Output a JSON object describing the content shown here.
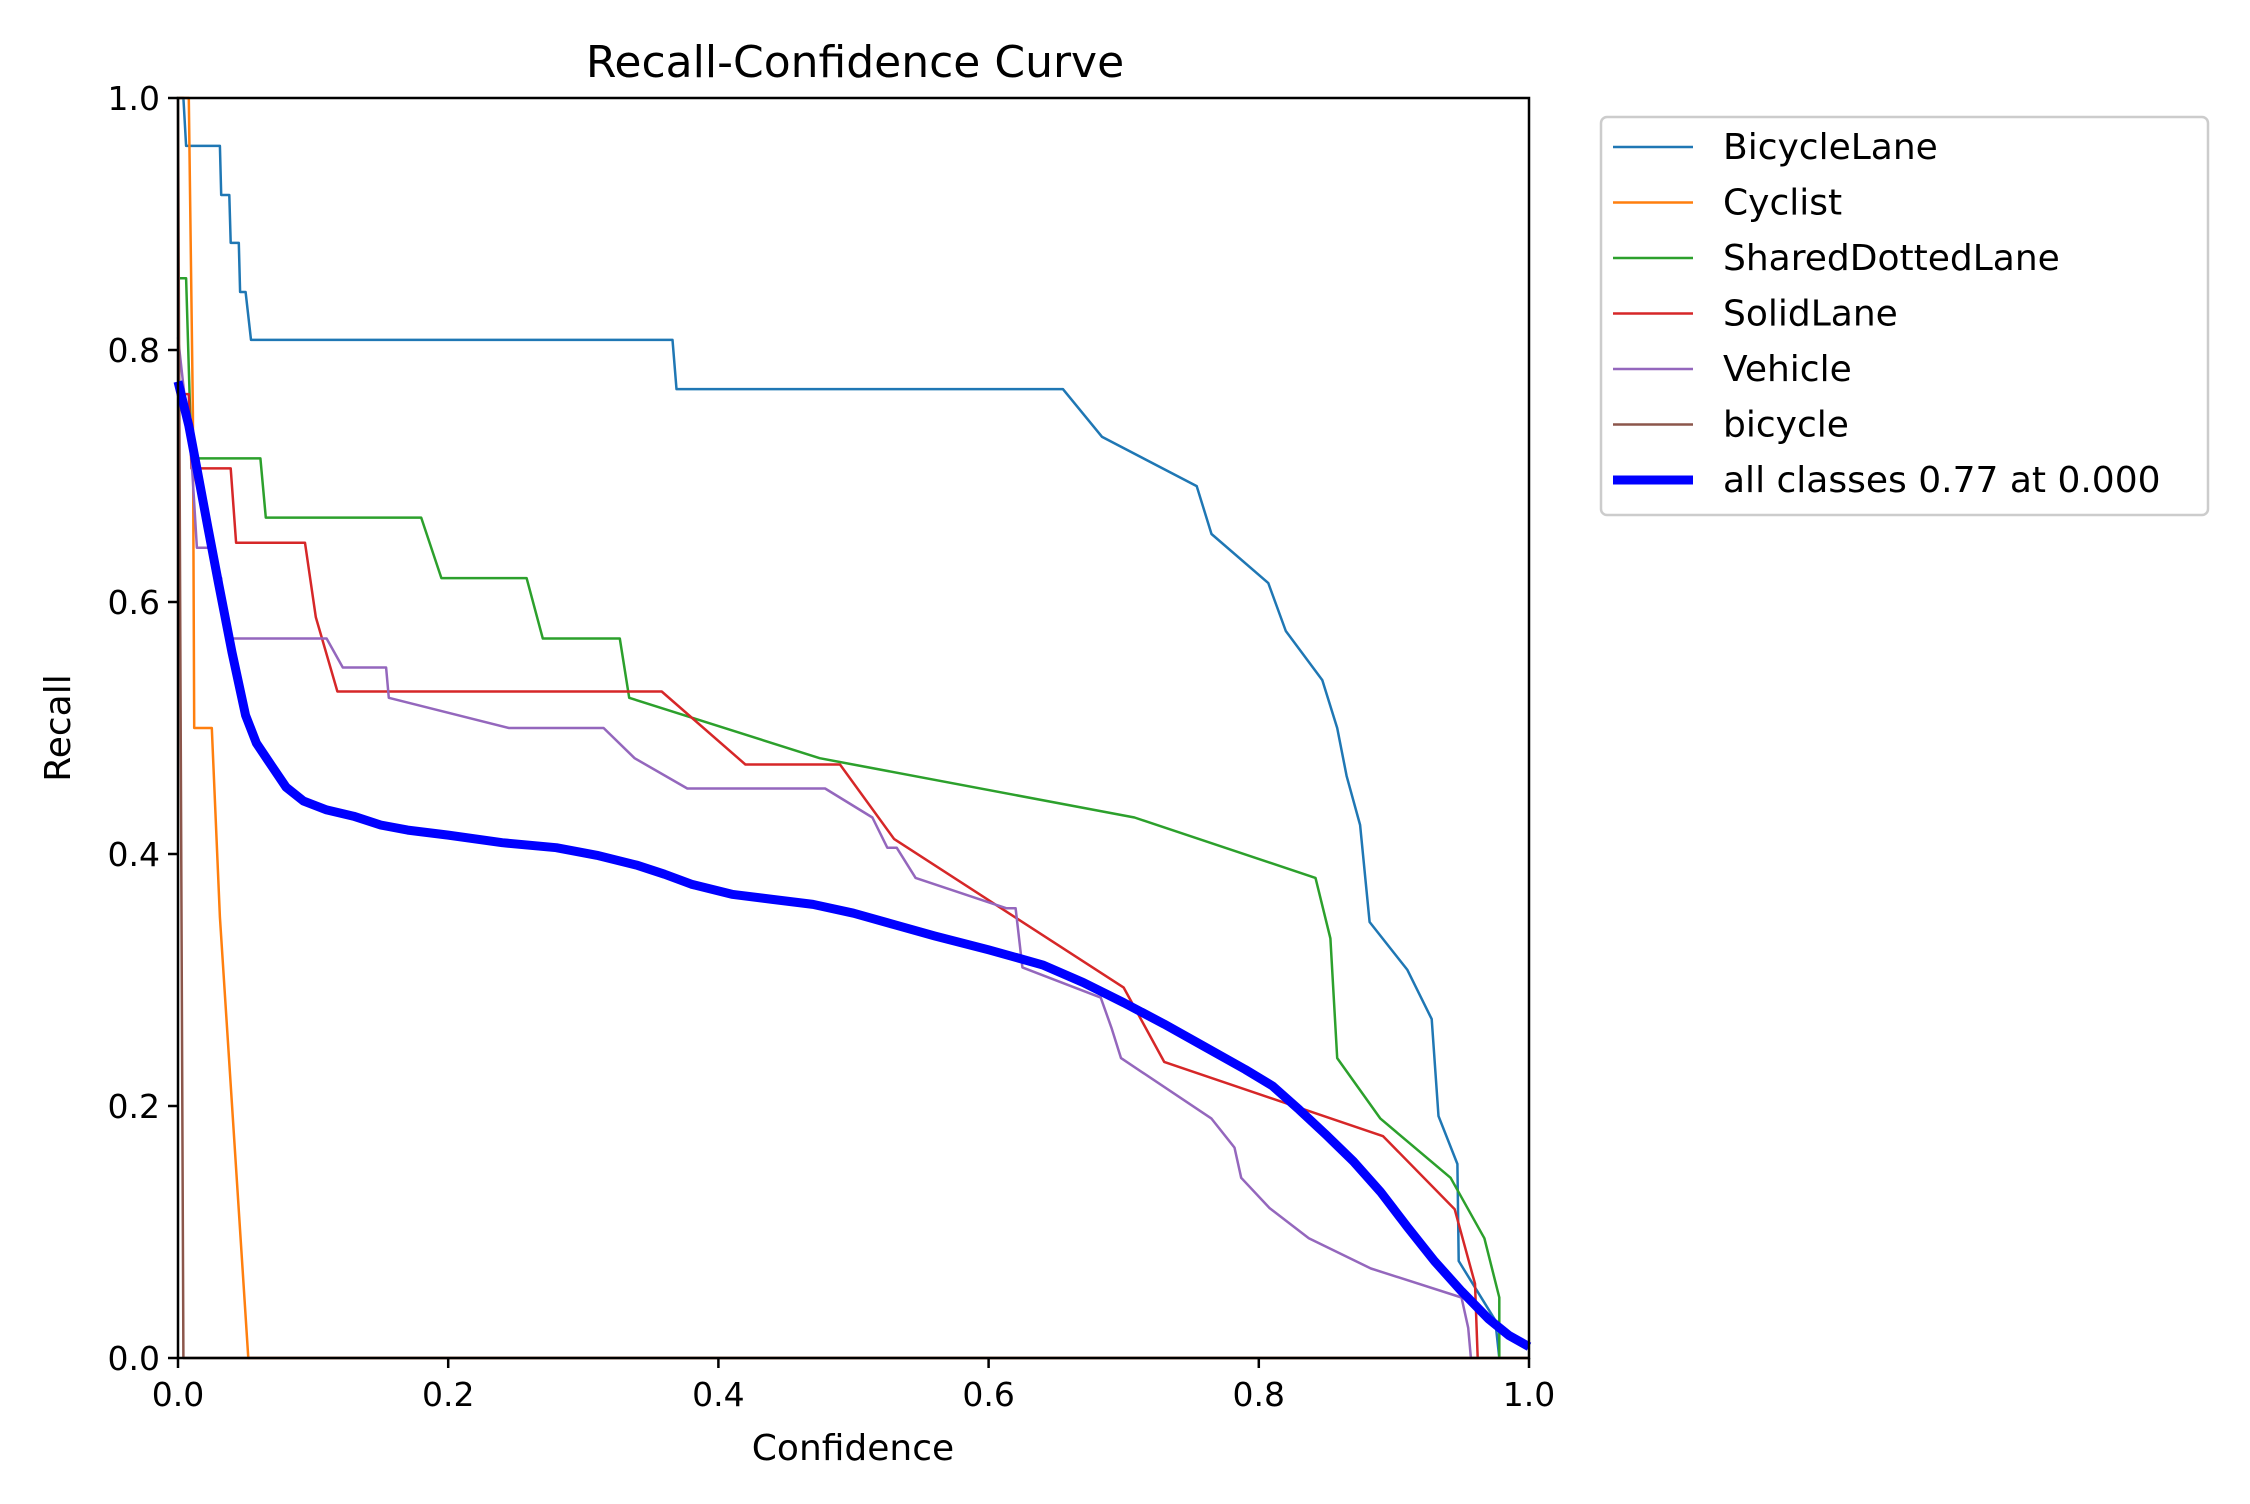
{
  "chart_data": {
    "type": "line",
    "title": "Recall-Confidence Curve",
    "xlabel": "Confidence",
    "ylabel": "Recall",
    "xlim": [
      0.0,
      1.0
    ],
    "ylim": [
      0.0,
      1.0
    ],
    "xticks": [
      "0.0",
      "0.2",
      "0.4",
      "0.6",
      "0.8",
      "1.0"
    ],
    "yticks": [
      "0.0",
      "0.2",
      "0.4",
      "0.6",
      "0.8",
      "1.0"
    ],
    "grid": false,
    "legend_position": "outside-upper-right",
    "series": [
      {
        "name": "BicycleLane",
        "color": "#1f77b4",
        "width": "thin",
        "points": [
          [
            0.0,
            1.0
          ],
          [
            0.004,
            1.0
          ],
          [
            0.006,
            0.962
          ],
          [
            0.031,
            0.962
          ],
          [
            0.032,
            0.923
          ],
          [
            0.038,
            0.923
          ],
          [
            0.039,
            0.885
          ],
          [
            0.045,
            0.885
          ],
          [
            0.046,
            0.846
          ],
          [
            0.05,
            0.846
          ],
          [
            0.054,
            0.808
          ],
          [
            0.366,
            0.808
          ],
          [
            0.369,
            0.769
          ],
          [
            0.655,
            0.769
          ],
          [
            0.684,
            0.731
          ],
          [
            0.754,
            0.692
          ],
          [
            0.765,
            0.654
          ],
          [
            0.807,
            0.615
          ],
          [
            0.82,
            0.577
          ],
          [
            0.847,
            0.538
          ],
          [
            0.858,
            0.5
          ],
          [
            0.865,
            0.462
          ],
          [
            0.875,
            0.423
          ],
          [
            0.882,
            0.346
          ],
          [
            0.91,
            0.308
          ],
          [
            0.928,
            0.269
          ],
          [
            0.933,
            0.192
          ],
          [
            0.947,
            0.154
          ],
          [
            0.948,
            0.077
          ],
          [
            0.975,
            0.03
          ],
          [
            0.978,
            0.0
          ]
        ]
      },
      {
        "name": "Cyclist",
        "color": "#ff7f0e",
        "width": "thin",
        "points": [
          [
            0.0,
            1.0
          ],
          [
            0.008,
            1.0
          ],
          [
            0.011,
            0.75
          ],
          [
            0.012,
            0.5
          ],
          [
            0.025,
            0.5
          ],
          [
            0.031,
            0.35
          ],
          [
            0.052,
            0.0
          ],
          [
            1.0,
            0.0
          ]
        ]
      },
      {
        "name": "SharedDottedLane",
        "color": "#2ca02c",
        "width": "thin",
        "points": [
          [
            0.0,
            0.857
          ],
          [
            0.006,
            0.857
          ],
          [
            0.01,
            0.714
          ],
          [
            0.061,
            0.714
          ],
          [
            0.065,
            0.667
          ],
          [
            0.18,
            0.667
          ],
          [
            0.195,
            0.619
          ],
          [
            0.258,
            0.619
          ],
          [
            0.27,
            0.571
          ],
          [
            0.327,
            0.571
          ],
          [
            0.334,
            0.524
          ],
          [
            0.475,
            0.476
          ],
          [
            0.708,
            0.429
          ],
          [
            0.842,
            0.381
          ],
          [
            0.853,
            0.333
          ],
          [
            0.858,
            0.238
          ],
          [
            0.89,
            0.19
          ],
          [
            0.942,
            0.143
          ],
          [
            0.967,
            0.095
          ],
          [
            0.978,
            0.048
          ],
          [
            0.978,
            0.0
          ]
        ]
      },
      {
        "name": "SolidLane",
        "color": "#d62728",
        "width": "thin",
        "points": [
          [
            0.0,
            0.765
          ],
          [
            0.008,
            0.765
          ],
          [
            0.01,
            0.706
          ],
          [
            0.039,
            0.706
          ],
          [
            0.043,
            0.647
          ],
          [
            0.094,
            0.647
          ],
          [
            0.102,
            0.588
          ],
          [
            0.118,
            0.529
          ],
          [
            0.358,
            0.529
          ],
          [
            0.42,
            0.471
          ],
          [
            0.49,
            0.471
          ],
          [
            0.53,
            0.412
          ],
          [
            0.7,
            0.294
          ],
          [
            0.73,
            0.235
          ],
          [
            0.892,
            0.176
          ],
          [
            0.945,
            0.118
          ],
          [
            0.96,
            0.059
          ],
          [
            0.962,
            0.0
          ]
        ]
      },
      {
        "name": "Vehicle",
        "color": "#9467bd",
        "width": "thin",
        "points": [
          [
            0.0,
            0.81
          ],
          [
            0.01,
            0.714
          ],
          [
            0.014,
            0.643
          ],
          [
            0.026,
            0.643
          ],
          [
            0.028,
            0.619
          ],
          [
            0.032,
            0.619
          ],
          [
            0.033,
            0.595
          ],
          [
            0.04,
            0.571
          ],
          [
            0.11,
            0.571
          ],
          [
            0.122,
            0.548
          ],
          [
            0.154,
            0.548
          ],
          [
            0.156,
            0.524
          ],
          [
            0.245,
            0.5
          ],
          [
            0.315,
            0.5
          ],
          [
            0.338,
            0.476
          ],
          [
            0.377,
            0.452
          ],
          [
            0.479,
            0.452
          ],
          [
            0.514,
            0.429
          ],
          [
            0.525,
            0.405
          ],
          [
            0.532,
            0.405
          ],
          [
            0.546,
            0.381
          ],
          [
            0.613,
            0.357
          ],
          [
            0.62,
            0.357
          ],
          [
            0.625,
            0.31
          ],
          [
            0.683,
            0.286
          ],
          [
            0.691,
            0.262
          ],
          [
            0.698,
            0.238
          ],
          [
            0.765,
            0.19
          ],
          [
            0.782,
            0.167
          ],
          [
            0.787,
            0.143
          ],
          [
            0.808,
            0.119
          ],
          [
            0.837,
            0.095
          ],
          [
            0.883,
            0.071
          ],
          [
            0.95,
            0.048
          ],
          [
            0.955,
            0.024
          ],
          [
            0.957,
            0.0
          ]
        ]
      },
      {
        "name": "bicycle",
        "color": "#8c564b",
        "width": "thin",
        "points": [
          [
            0.0,
            1.0
          ],
          [
            0.004,
            0.0
          ],
          [
            1.0,
            0.0
          ]
        ]
      },
      {
        "name": "all classes 0.77 at 0.000",
        "color": "#0000ff",
        "width": "thick",
        "points": [
          [
            0.0,
            0.775
          ],
          [
            0.008,
            0.74
          ],
          [
            0.015,
            0.7
          ],
          [
            0.022,
            0.66
          ],
          [
            0.03,
            0.615
          ],
          [
            0.04,
            0.56
          ],
          [
            0.05,
            0.51
          ],
          [
            0.058,
            0.488
          ],
          [
            0.068,
            0.472
          ],
          [
            0.08,
            0.453
          ],
          [
            0.093,
            0.442
          ],
          [
            0.11,
            0.435
          ],
          [
            0.13,
            0.43
          ],
          [
            0.15,
            0.423
          ],
          [
            0.17,
            0.419
          ],
          [
            0.2,
            0.415
          ],
          [
            0.24,
            0.409
          ],
          [
            0.28,
            0.405
          ],
          [
            0.31,
            0.399
          ],
          [
            0.34,
            0.391
          ],
          [
            0.36,
            0.384
          ],
          [
            0.38,
            0.376
          ],
          [
            0.41,
            0.368
          ],
          [
            0.44,
            0.364
          ],
          [
            0.47,
            0.36
          ],
          [
            0.5,
            0.353
          ],
          [
            0.53,
            0.344
          ],
          [
            0.56,
            0.335
          ],
          [
            0.6,
            0.324
          ],
          [
            0.64,
            0.312
          ],
          [
            0.67,
            0.298
          ],
          [
            0.7,
            0.282
          ],
          [
            0.73,
            0.265
          ],
          [
            0.76,
            0.247
          ],
          [
            0.79,
            0.229
          ],
          [
            0.81,
            0.216
          ],
          [
            0.83,
            0.197
          ],
          [
            0.85,
            0.177
          ],
          [
            0.87,
            0.156
          ],
          [
            0.89,
            0.132
          ],
          [
            0.91,
            0.104
          ],
          [
            0.93,
            0.077
          ],
          [
            0.95,
            0.053
          ],
          [
            0.97,
            0.031
          ],
          [
            0.985,
            0.018
          ],
          [
            1.0,
            0.009
          ]
        ]
      }
    ]
  }
}
